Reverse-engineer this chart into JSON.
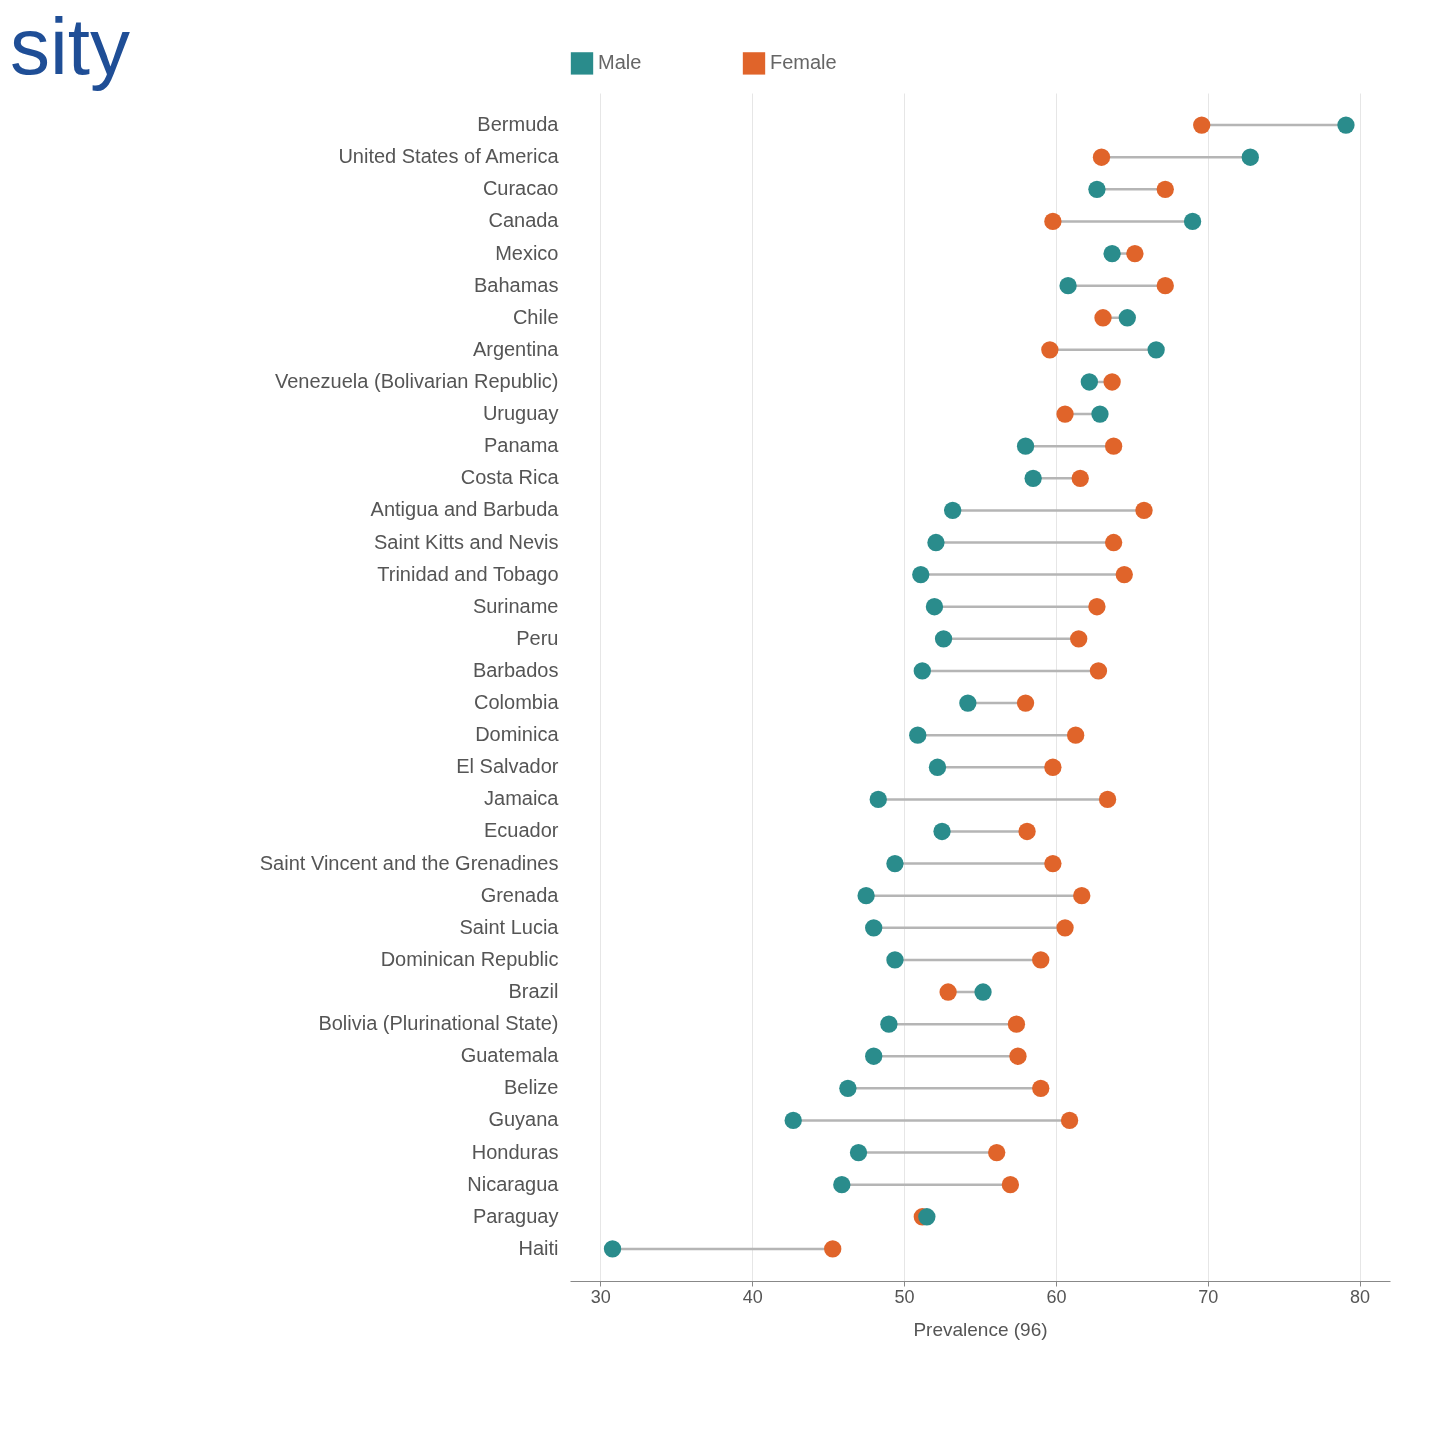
{
  "chart_data": {
    "type": "scatter",
    "orientation": "horizontal",
    "title": "sity",
    "xlabel": "Prevalence (96)",
    "categories": [
      "Bermuda",
      "United States of America",
      "Curacao",
      "Canada",
      "Mexico",
      "Bahamas",
      "Chile",
      "Argentina",
      "Venezuela (Bolivarian Republic)",
      "Uruguay",
      "Panama",
      "Costa Rica",
      "Antigua and Barbuda",
      "Saint Kitts and Nevis",
      "Trinidad and Tobago",
      "Suriname",
      "Peru",
      "Barbados",
      "Colombia",
      "Dominica",
      "El Salvador",
      "Jamaica",
      "Ecuador",
      "Saint Vincent and the Grenadines",
      "Grenada",
      "Saint Lucia",
      "Dominican Republic",
      "Brazil",
      "Bolivia (Plurinational State)",
      "Guatemala",
      "Belize",
      "Guyana",
      "Honduras",
      "Nicaragua",
      "Paraguay",
      "Haiti"
    ],
    "series": [
      {
        "name": "Male",
        "color": "#2a8c8c",
        "values": [
          79.1,
          72.8,
          62.7,
          69.0,
          63.7,
          60.8,
          64.7,
          66.6,
          62.2,
          62.9,
          58.0,
          58.5,
          53.2,
          52.1,
          51.1,
          52.0,
          52.6,
          51.2,
          54.2,
          50.9,
          52.2,
          48.3,
          52.5,
          49.4,
          47.5,
          48.0,
          49.4,
          55.2,
          49.0,
          48.0,
          46.3,
          42.7,
          47.0,
          45.9,
          51.5,
          30.8
        ]
      },
      {
        "name": "Female",
        "color": "#e0642a",
        "values": [
          69.6,
          63.0,
          67.2,
          59.8,
          65.2,
          67.2,
          63.1,
          59.6,
          63.7,
          60.6,
          63.8,
          61.6,
          65.8,
          63.8,
          64.5,
          62.7,
          61.5,
          62.8,
          58.0,
          61.3,
          59.8,
          63.4,
          58.1,
          59.8,
          61.7,
          60.6,
          59.0,
          52.9,
          57.4,
          57.5,
          59.0,
          60.9,
          56.1,
          57.0,
          51.2,
          45.3
        ]
      }
    ],
    "xlim": [
      28,
      82
    ],
    "xticks": [
      30,
      40,
      50,
      60,
      70,
      80
    ],
    "grid": "x",
    "legend": "top",
    "marker": "circle"
  }
}
